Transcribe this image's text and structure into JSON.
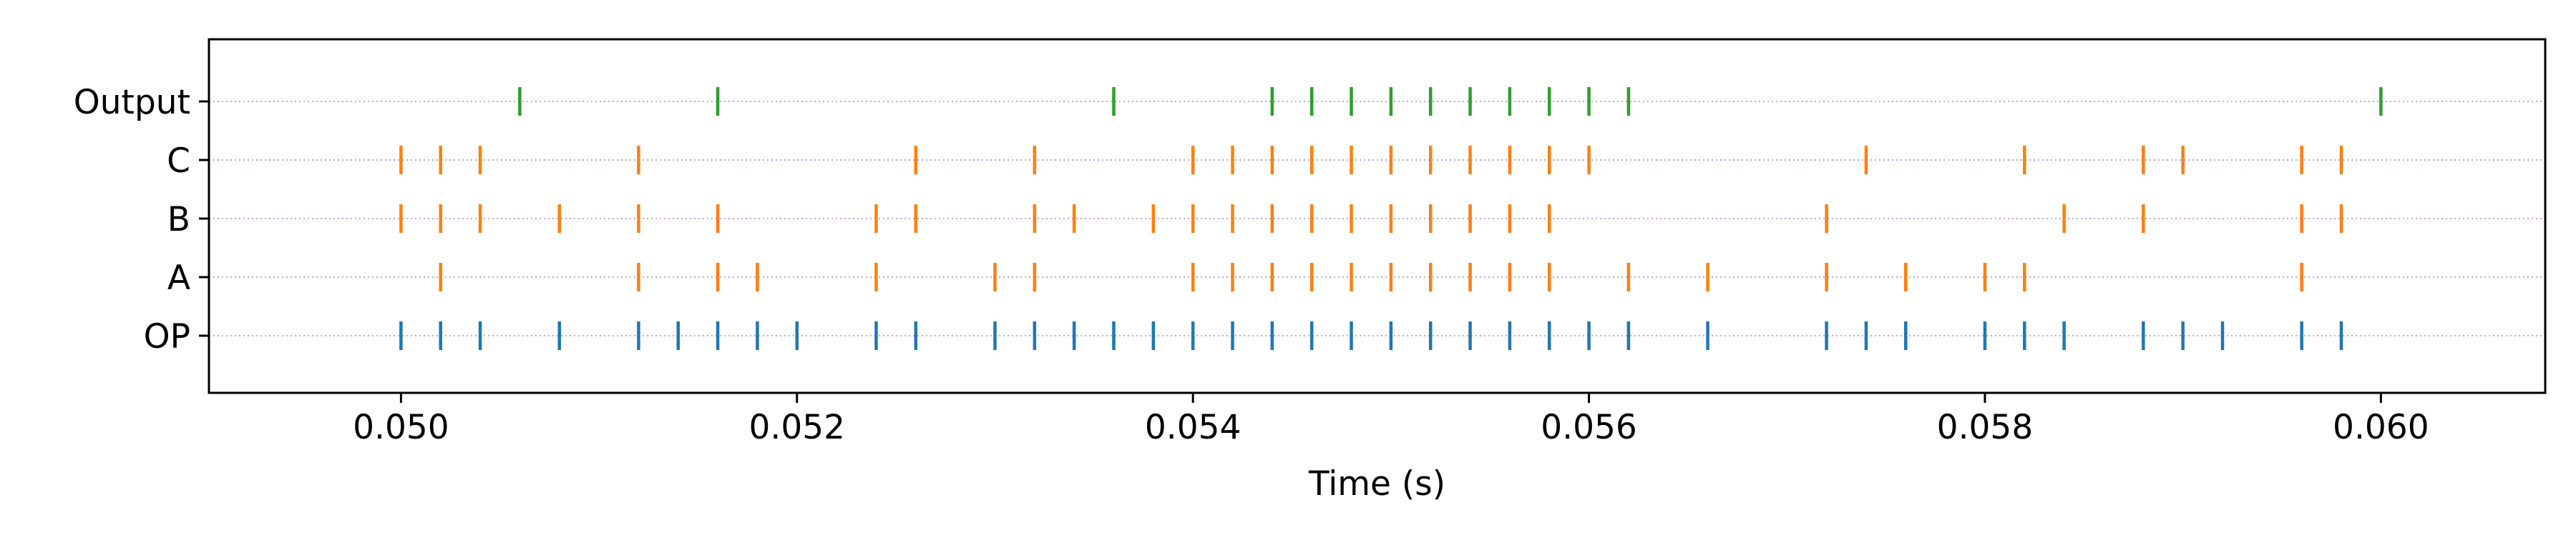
{
  "chart_data": {
    "type": "scatter",
    "title": "",
    "xlabel": "Time (s)",
    "ylabel": "",
    "xlim": [
      0.04903,
      0.06083
    ],
    "x_ticks": [
      {
        "value": 0.05,
        "label": "0.050"
      },
      {
        "value": 0.052,
        "label": "0.052"
      },
      {
        "value": 0.054,
        "label": "0.054"
      },
      {
        "value": 0.056,
        "label": "0.056"
      },
      {
        "value": 0.058,
        "label": "0.058"
      },
      {
        "value": 0.06,
        "label": "0.060"
      }
    ],
    "rows": [
      "OP",
      "A",
      "B",
      "C",
      "Output"
    ],
    "grid": "horizontal dotted",
    "series": [
      {
        "row": "OP",
        "color": "#1f77b4",
        "x": [
          0.05,
          0.0502,
          0.0504,
          0.0508,
          0.0512,
          0.0514,
          0.0516,
          0.0518,
          0.052,
          0.0524,
          0.0526,
          0.053,
          0.0532,
          0.0534,
          0.0536,
          0.0538,
          0.054,
          0.0542,
          0.0544,
          0.0546,
          0.0548,
          0.055,
          0.0552,
          0.0554,
          0.0556,
          0.0558,
          0.056,
          0.0562,
          0.0566,
          0.0572,
          0.0574,
          0.0576,
          0.058,
          0.0582,
          0.0584,
          0.0588,
          0.059,
          0.0592,
          0.0596,
          0.0598
        ]
      },
      {
        "row": "A",
        "color": "#ff7f0e",
        "x": [
          0.0502,
          0.0512,
          0.0516,
          0.0518,
          0.0524,
          0.053,
          0.0532,
          0.054,
          0.0542,
          0.0544,
          0.0546,
          0.0548,
          0.055,
          0.0552,
          0.0554,
          0.0556,
          0.0558,
          0.0562,
          0.0566,
          0.0572,
          0.0576,
          0.058,
          0.0582,
          0.0596
        ]
      },
      {
        "row": "B",
        "color": "#ff7f0e",
        "x": [
          0.05,
          0.0502,
          0.0504,
          0.0508,
          0.0512,
          0.0516,
          0.0524,
          0.0526,
          0.0532,
          0.0534,
          0.0538,
          0.054,
          0.0542,
          0.0544,
          0.0546,
          0.0548,
          0.055,
          0.0552,
          0.0554,
          0.0556,
          0.0558,
          0.0572,
          0.0584,
          0.0588,
          0.0596,
          0.0598
        ]
      },
      {
        "row": "C",
        "color": "#ff7f0e",
        "x": [
          0.05,
          0.0502,
          0.0504,
          0.0512,
          0.0526,
          0.0532,
          0.054,
          0.0542,
          0.0544,
          0.0546,
          0.0548,
          0.055,
          0.0552,
          0.0554,
          0.0556,
          0.0558,
          0.056,
          0.0574,
          0.0582,
          0.0588,
          0.059,
          0.0596,
          0.0598
        ]
      },
      {
        "row": "Output",
        "color": "#2ca02c",
        "x": [
          0.0506,
          0.0516,
          0.0536,
          0.0544,
          0.0546,
          0.0548,
          0.055,
          0.0552,
          0.0554,
          0.0556,
          0.0558,
          0.056,
          0.0562,
          0.06
        ]
      }
    ]
  }
}
